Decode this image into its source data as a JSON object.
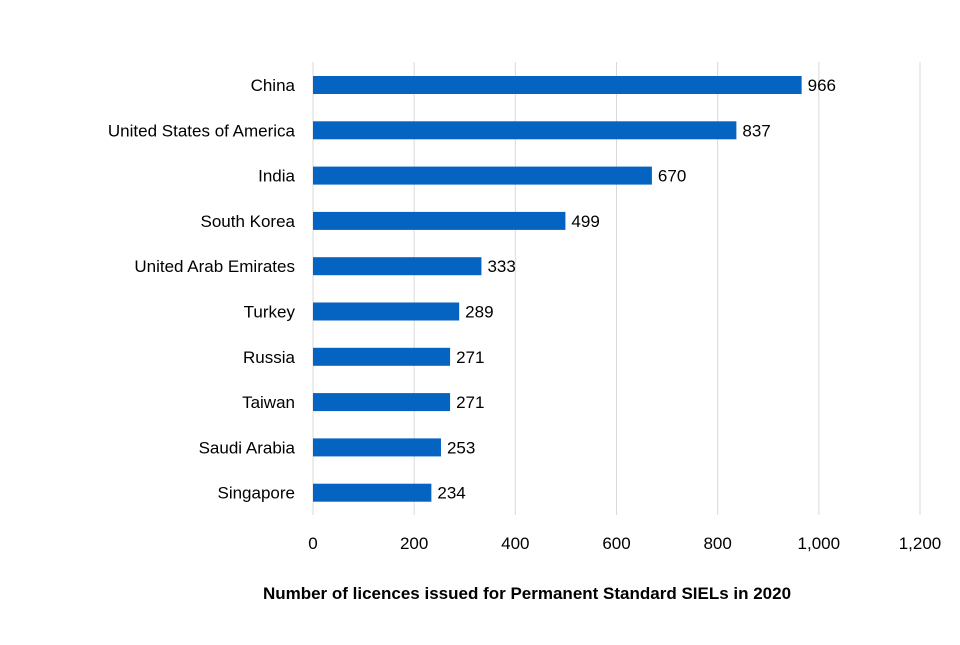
{
  "chart_data": {
    "type": "bar",
    "orientation": "horizontal",
    "categories": [
      "China",
      "United States of America",
      "India",
      "South Korea",
      "United Arab Emirates",
      "Turkey",
      "Russia",
      "Taiwan",
      "Saudi Arabia",
      "Singapore"
    ],
    "values": [
      966,
      837,
      670,
      499,
      333,
      289,
      271,
      271,
      253,
      234
    ],
    "data_labels": [
      "966",
      "837",
      "670",
      "499",
      "333",
      "289",
      "271",
      "271",
      "253",
      "234"
    ],
    "title": "",
    "xlabel": "Number of licences issued for Permanent Standard SIELs in 2020",
    "ylabel": "",
    "xlim": [
      0,
      1200
    ],
    "xticks": [
      0,
      200,
      400,
      600,
      800,
      1000,
      1200
    ],
    "xtick_labels": [
      "0",
      "200",
      "400",
      "600",
      "800",
      "1,000",
      "1,200"
    ],
    "grid": "vertical",
    "bar_color": "#0563c1",
    "grid_color": "#d9d9d9"
  }
}
